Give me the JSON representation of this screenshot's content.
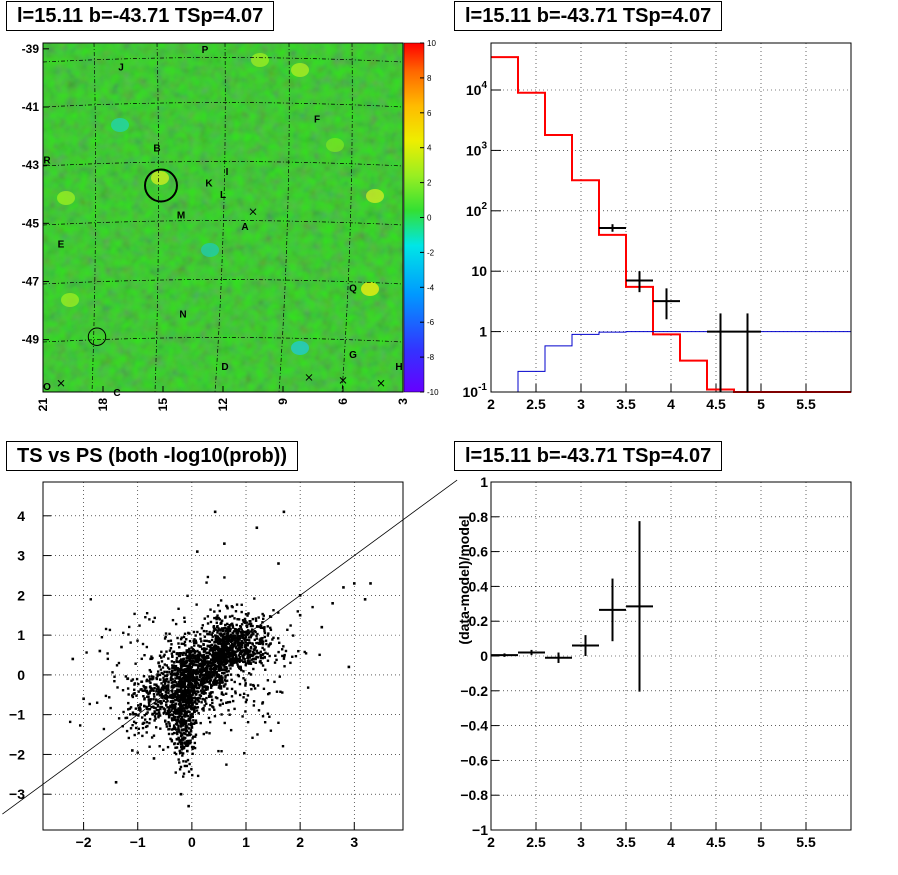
{
  "panels": {
    "skymap_title": "l=15.11 b=-43.71 TSp=4.07",
    "spectrum_title": "l=15.11 b=-43.71 TSp=4.07",
    "scatter_title": "TS vs PS (both -log10(prob))",
    "residual_title": "l=15.11 b=-43.71 TSp=4.07"
  },
  "colors": {
    "map_green": "#33e01f",
    "model_line": "#ff0000",
    "background_line": "#0000cc",
    "data_points": "#000000"
  },
  "chart_data": [
    {
      "type": "heatmap",
      "title": "l=15.11 b=-43.71 TSp=4.07",
      "xlabel": "",
      "ylabel": "",
      "xlim": [
        21,
        3
      ],
      "ylim": [
        -50.8,
        -38.8
      ],
      "xticks": [
        "21",
        "18",
        "15",
        "12",
        "9",
        "6",
        "3"
      ],
      "yticks": [
        "-39",
        "-41",
        "-43",
        "-45",
        "-47",
        "-49"
      ],
      "colorbar_ticks": [
        "10",
        "8",
        "6",
        "4",
        "2",
        "0",
        "-2",
        "-4",
        "-6",
        "-8",
        "-10"
      ],
      "colorbar_range": [
        -10,
        10
      ],
      "grid": "dashed",
      "source_labels": [
        {
          "text": "P",
          "l": 12.9,
          "b": -39.0
        },
        {
          "text": "J",
          "l": 17.1,
          "b": -39.6
        },
        {
          "text": "F",
          "l": 7.3,
          "b": -41.4
        },
        {
          "text": "B",
          "l": 15.3,
          "b": -42.4
        },
        {
          "text": "R",
          "l": 20.8,
          "b": -42.8
        },
        {
          "text": "I",
          "l": 11.8,
          "b": -43.2
        },
        {
          "text": "K",
          "l": 12.7,
          "b": -43.6
        },
        {
          "text": "L",
          "l": 12.0,
          "b": -44.0
        },
        {
          "text": "M",
          "l": 14.1,
          "b": -44.7
        },
        {
          "text": "A",
          "l": 10.9,
          "b": -45.1
        },
        {
          "text": "E",
          "l": 20.1,
          "b": -45.7
        },
        {
          "text": "Q",
          "l": 5.5,
          "b": -47.2
        },
        {
          "text": "N",
          "l": 14.0,
          "b": -48.1
        },
        {
          "text": "G",
          "l": 5.5,
          "b": -49.5
        },
        {
          "text": "D",
          "l": 11.9,
          "b": -49.9
        },
        {
          "text": "H",
          "l": 3.2,
          "b": -49.9
        },
        {
          "text": "O",
          "l": 20.8,
          "b": -50.6
        },
        {
          "text": "C",
          "l": 17.3,
          "b": -50.8
        }
      ],
      "crosses": [
        {
          "l": 10.5,
          "b": -44.6
        },
        {
          "l": 20.1,
          "b": -50.5
        },
        {
          "l": 7.7,
          "b": -50.3
        },
        {
          "l": 6.0,
          "b": -50.4
        },
        {
          "l": 4.1,
          "b": -50.5
        }
      ],
      "circles": [
        {
          "l": 15.1,
          "b": -43.7,
          "radius_deg": 0.55
        },
        {
          "l": 18.3,
          "b": -48.9,
          "radius_deg": 0.3
        }
      ]
    },
    {
      "type": "line",
      "title": "l=15.11 b=-43.71 TSp=4.07",
      "xlabel": "",
      "ylabel": "",
      "xlim": [
        2,
        6
      ],
      "ylim": [
        0.1,
        60000
      ],
      "log_y": true,
      "xticks": [
        "2",
        "2.5",
        "3",
        "3.5",
        "4",
        "4.5",
        "5",
        "5.5"
      ],
      "yticks": [
        "10^-1",
        "1",
        "10",
        "10^2",
        "10^3",
        "10^4"
      ],
      "grid": "dotted",
      "series": [
        {
          "style": "step",
          "color": "red",
          "bin_edges": [
            2.0,
            2.3,
            2.6,
            2.9,
            3.2,
            3.5,
            3.8,
            4.1,
            4.4,
            4.7,
            5.0,
            6.0
          ],
          "values": [
            35000,
            9000,
            1800,
            320,
            40,
            5.5,
            0.9,
            0.33,
            0.11,
            0.1,
            0.1
          ]
        },
        {
          "style": "step",
          "color": "blue",
          "bin_edges": [
            2.0,
            2.3,
            2.6,
            2.9,
            3.2,
            3.5,
            3.8,
            4.1,
            4.4,
            4.7,
            5.0,
            6.0
          ],
          "values": [
            0.1,
            0.22,
            0.58,
            0.9,
            0.98,
            1.0,
            1.0,
            1.0,
            1.0,
            1.0,
            1.0
          ]
        },
        {
          "style": "errorbar",
          "color": "black",
          "points": [
            {
              "x": 3.35,
              "y": 52,
              "xerr": 0.15,
              "ylo": 45,
              "yhi": 60
            },
            {
              "x": 3.65,
              "y": 7,
              "xerr": 0.15,
              "ylo": 4.5,
              "yhi": 10
            },
            {
              "x": 3.95,
              "y": 3.2,
              "xerr": 0.15,
              "ylo": 1.6,
              "yhi": 5.2
            },
            {
              "x": 4.55,
              "y": 1,
              "xerr": 0.15,
              "ylo": 0.1,
              "yhi": 2.0
            },
            {
              "x": 4.85,
              "y": 1,
              "xerr": 0.15,
              "ylo": 0.1,
              "yhi": 2.0
            }
          ]
        }
      ]
    },
    {
      "type": "scatter",
      "title": "TS vs PS (both -log10(prob))",
      "xlabel": "",
      "ylabel": "",
      "xlim": [
        -2.75,
        3.9
      ],
      "ylim": [
        -3.9,
        4.85
      ],
      "xticks": [
        "-2",
        "-1",
        "0",
        "1",
        "2",
        "3"
      ],
      "yticks": [
        "4",
        "3",
        "2",
        "1",
        "0",
        "-1",
        "-2",
        "-3"
      ],
      "grid": "dotted",
      "diagonal": {
        "x1": -3.5,
        "y1": -3.5,
        "x2": 4.9,
        "y2": 4.9
      },
      "point_color": "black",
      "outliers": [
        {
          "x": 0.43,
          "y": 4.1
        },
        {
          "x": 1.7,
          "y": 4.1
        },
        {
          "x": 1.2,
          "y": 3.7
        },
        {
          "x": 3.3,
          "y": 2.3
        },
        {
          "x": 3.0,
          "y": 2.3
        },
        {
          "x": 2.8,
          "y": 2.2
        },
        {
          "x": 3.2,
          "y": 1.9
        },
        {
          "x": -1.4,
          "y": -2.7
        },
        {
          "x": -0.06,
          "y": -3.3
        },
        {
          "x": -0.2,
          "y": -3.0
        },
        {
          "x": 2.6,
          "y": 1.8
        },
        {
          "x": -2.2,
          "y": 0.4
        },
        {
          "x": -2.0,
          "y": -0.6
        },
        {
          "x": -1.7,
          "y": 0.6
        },
        {
          "x": 2.4,
          "y": 1.2
        },
        {
          "x": 2.0,
          "y": 2.0
        },
        {
          "x": 1.6,
          "y": 2.8
        },
        {
          "x": 0.6,
          "y": 3.3
        },
        {
          "x": 2.9,
          "y": 0.2
        },
        {
          "x": -1.1,
          "y": -1.9
        },
        {
          "x": 0.1,
          "y": 3.1
        },
        {
          "x": 2.0,
          "y": 1.5
        },
        {
          "x": -0.7,
          "y": -2.1
        },
        {
          "x": -1.3,
          "y": 0.7
        }
      ]
    },
    {
      "type": "scatter",
      "title": "l=15.11 b=-43.71 TSp=4.07",
      "xlabel": "",
      "ylabel": "(data-model)/model",
      "xlim": [
        2,
        6
      ],
      "ylim": [
        -1,
        1
      ],
      "xticks": [
        "2",
        "2.5",
        "3",
        "3.5",
        "4",
        "4.5",
        "5",
        "5.5"
      ],
      "yticks": [
        "1",
        "0.8",
        "0.6",
        "0.4",
        "0.2",
        "0",
        "-0.2",
        "-0.4",
        "-0.6",
        "-0.8",
        "-1"
      ],
      "grid": "dotted",
      "points": [
        {
          "x": 2.15,
          "y": 0.005,
          "xerr": 0.15,
          "yerr": 0.01
        },
        {
          "x": 2.45,
          "y": 0.02,
          "xerr": 0.15,
          "yerr": 0.015
        },
        {
          "x": 2.75,
          "y": -0.01,
          "xerr": 0.15,
          "yerr": 0.03
        },
        {
          "x": 3.05,
          "y": 0.06,
          "xerr": 0.15,
          "yerr": 0.06
        },
        {
          "x": 3.35,
          "y": 0.265,
          "xerr": 0.15,
          "yerr": 0.18
        },
        {
          "x": 3.65,
          "y": 0.285,
          "xerr": 0.15,
          "yerr": 0.49
        }
      ]
    }
  ]
}
